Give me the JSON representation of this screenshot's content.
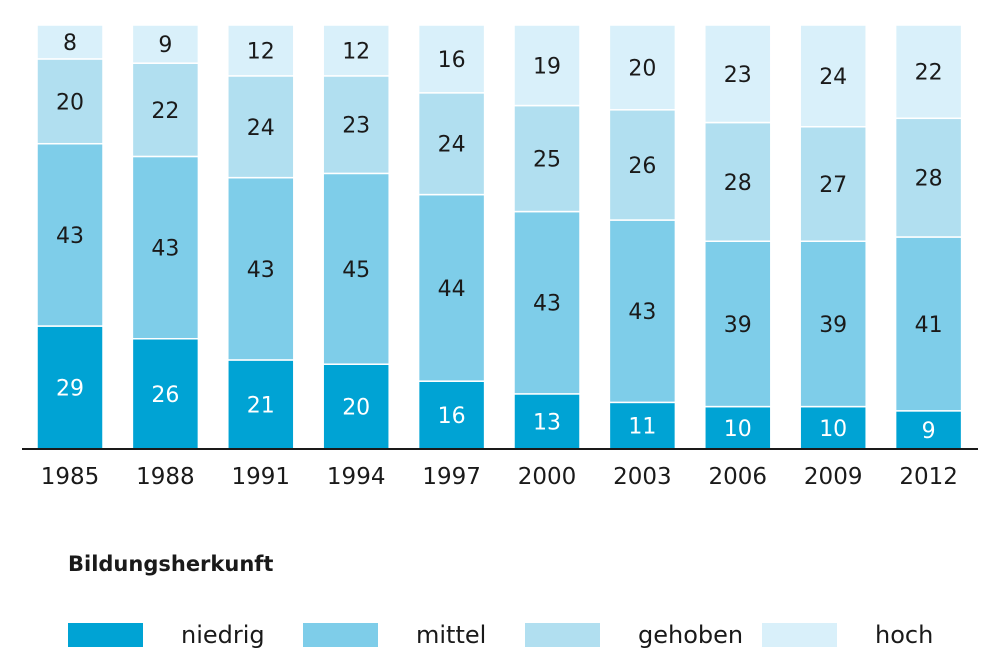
{
  "chart_data": {
    "type": "bar",
    "stacked": true,
    "categories": [
      "1985",
      "1988",
      "1991",
      "1994",
      "1997",
      "2000",
      "2003",
      "2006",
      "2009",
      "2012"
    ],
    "series": [
      {
        "name": "niedrig",
        "color": "#00a3d4",
        "values": [
          29,
          26,
          21,
          20,
          16,
          13,
          11,
          10,
          10,
          9
        ]
      },
      {
        "name": "mittel",
        "color": "#7ecde9",
        "values": [
          43,
          43,
          43,
          45,
          44,
          43,
          43,
          39,
          39,
          41
        ]
      },
      {
        "name": "gehoben",
        "color": "#b1dff0",
        "values": [
          20,
          22,
          24,
          23,
          24,
          25,
          26,
          28,
          27,
          28
        ]
      },
      {
        "name": "hoch",
        "color": "#d9f0fa",
        "values": [
          8,
          9,
          12,
          12,
          16,
          19,
          20,
          23,
          24,
          22
        ]
      }
    ],
    "ylim": [
      0,
      100
    ],
    "grid": false,
    "legend_title": "Bildungsherkunft",
    "legend_position": "bottom-left"
  }
}
